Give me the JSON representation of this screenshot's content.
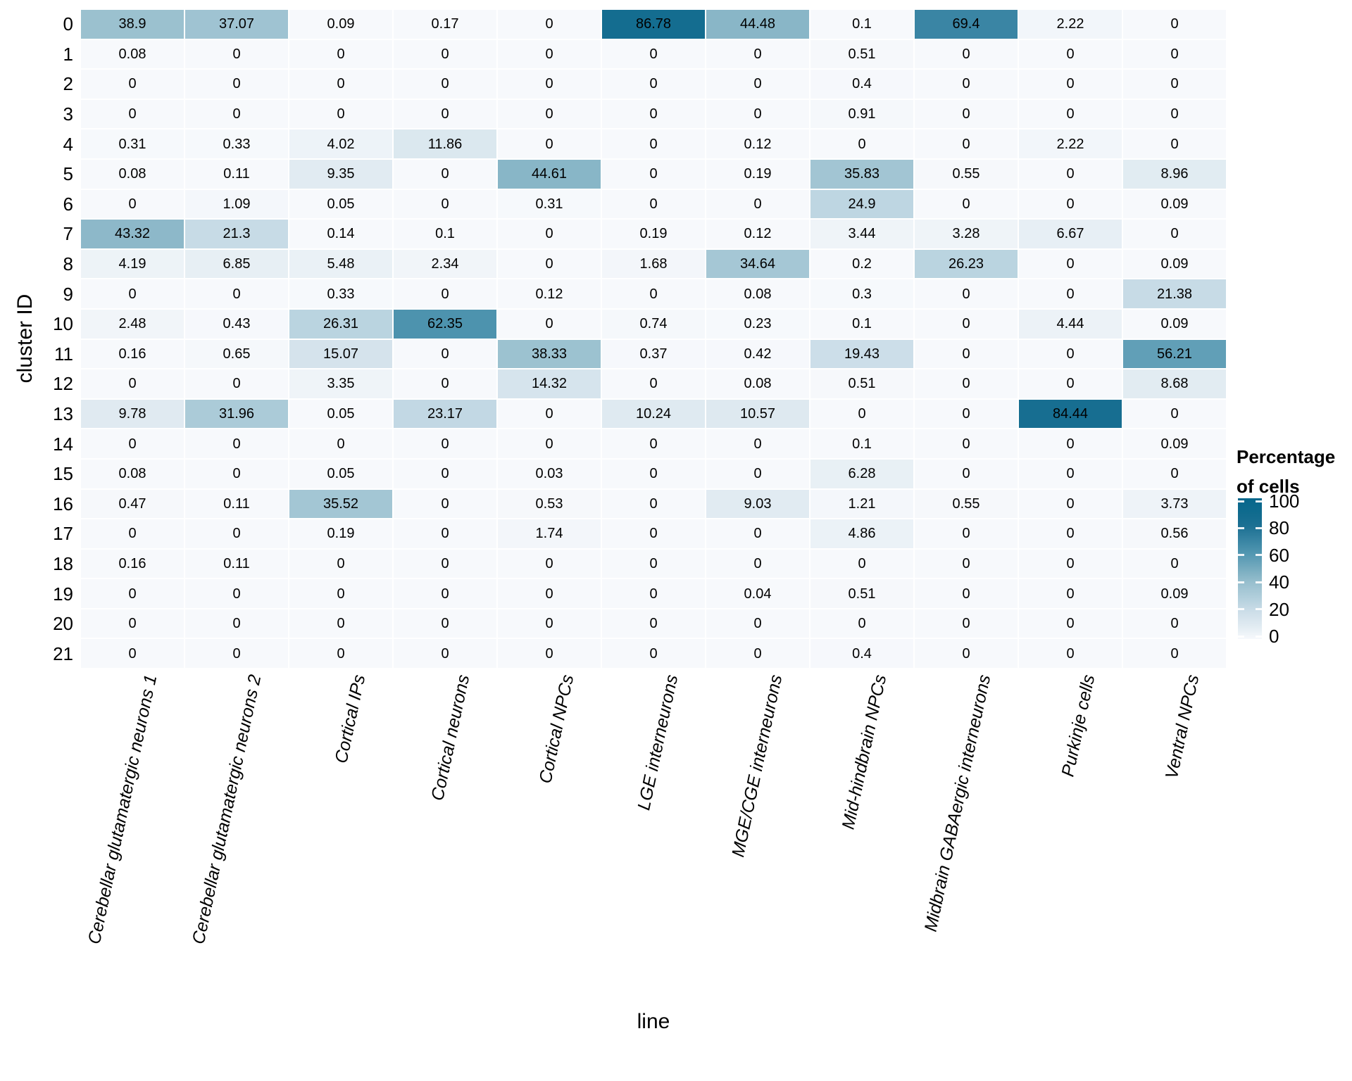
{
  "figure_background": "#ffffff",
  "axes": {
    "x_title": "line",
    "y_title": "cluster ID"
  },
  "legend": {
    "title_line1": "Percentage",
    "title_line2": "of cells",
    "tick_labels": [
      100,
      80,
      60,
      40,
      20,
      0
    ]
  },
  "chart_data": {
    "type": "heatmap",
    "title": "",
    "xlabel": "line",
    "ylabel": "cluster ID",
    "legend_title": "Percentage of cells",
    "legend_position": "right",
    "grid": false,
    "value_range": [
      0,
      100
    ],
    "columns": [
      "Cerebellar glutamatergic neurons 1",
      "Cerebellar glutamatergic neurons 2",
      "Cortical IPs",
      "Cortical neurons",
      "Cortical NPCs",
      "LGE interneurons",
      "MGE/CGE interneurons",
      "Mid-hindbrain NPCs",
      "Midbrain GABAergic interneurons",
      "Purkinje cells",
      "Ventral NPCs"
    ],
    "rows": [
      "0",
      "1",
      "2",
      "3",
      "4",
      "5",
      "6",
      "7",
      "8",
      "9",
      "10",
      "11",
      "12",
      "13",
      "14",
      "15",
      "16",
      "17",
      "18",
      "19",
      "20",
      "21"
    ],
    "values": [
      [
        38.9,
        37.07,
        0.09,
        0.17,
        0,
        86.78,
        44.48,
        0.1,
        69.4,
        2.22,
        0
      ],
      [
        0.08,
        0,
        0,
        0,
        0,
        0,
        0,
        0.51,
        0,
        0,
        0
      ],
      [
        0,
        0,
        0,
        0,
        0,
        0,
        0,
        0.4,
        0,
        0,
        0
      ],
      [
        0,
        0,
        0,
        0,
        0,
        0,
        0,
        0.91,
        0,
        0,
        0
      ],
      [
        0.31,
        0.33,
        4.02,
        11.86,
        0,
        0,
        0.12,
        0,
        0,
        2.22,
        0
      ],
      [
        0.08,
        0.11,
        9.35,
        0,
        44.61,
        0,
        0.19,
        35.83,
        0.55,
        0,
        8.96
      ],
      [
        0,
        1.09,
        0.05,
        0,
        0.31,
        0,
        0,
        24.9,
        0,
        0,
        0.09
      ],
      [
        43.32,
        21.3,
        0.14,
        0.1,
        0,
        0.19,
        0.12,
        3.44,
        3.28,
        6.67,
        0
      ],
      [
        4.19,
        6.85,
        5.48,
        2.34,
        0,
        1.68,
        34.64,
        0.2,
        26.23,
        0,
        0.09
      ],
      [
        0,
        0,
        0.33,
        0,
        0.12,
        0,
        0.08,
        0.3,
        0,
        0,
        21.38
      ],
      [
        2.48,
        0.43,
        26.31,
        62.35,
        0,
        0.74,
        0.23,
        0.1,
        0,
        4.44,
        0.09
      ],
      [
        0.16,
        0.65,
        15.07,
        0,
        38.33,
        0.37,
        0.42,
        19.43,
        0,
        0,
        56.21
      ],
      [
        0,
        0,
        3.35,
        0,
        14.32,
        0,
        0.08,
        0.51,
        0,
        0,
        8.68
      ],
      [
        9.78,
        31.96,
        0.05,
        23.17,
        0,
        10.24,
        10.57,
        0,
        0,
        84.44,
        0
      ],
      [
        0,
        0,
        0,
        0,
        0,
        0,
        0,
        0.1,
        0,
        0,
        0.09
      ],
      [
        0.08,
        0,
        0.05,
        0,
        0.03,
        0,
        0,
        6.28,
        0,
        0,
        0
      ],
      [
        0.47,
        0.11,
        35.52,
        0,
        0.53,
        0,
        9.03,
        1.21,
        0.55,
        0,
        3.73
      ],
      [
        0,
        0,
        0.19,
        0,
        1.74,
        0,
        0,
        4.86,
        0,
        0,
        0.56
      ],
      [
        0.16,
        0.11,
        0,
        0,
        0,
        0,
        0,
        0,
        0,
        0,
        0
      ],
      [
        0,
        0,
        0,
        0,
        0,
        0,
        0.04,
        0.51,
        0,
        0,
        0.09
      ],
      [
        0,
        0,
        0,
        0,
        0,
        0,
        0,
        0,
        0,
        0,
        0
      ],
      [
        0,
        0,
        0,
        0,
        0,
        0,
        0,
        0.4,
        0,
        0,
        0
      ]
    ],
    "color_scale": {
      "min": 0,
      "max": 100,
      "low": "#f7f9fc",
      "high": "#07678c",
      "stops": [
        [
          0,
          "#f7f9fc"
        ],
        [
          10,
          "#dfeaf1"
        ],
        [
          20,
          "#cbdde8"
        ],
        [
          30,
          "#b0cedb"
        ],
        [
          40,
          "#98bfce"
        ],
        [
          50,
          "#76abbf"
        ],
        [
          60,
          "#5498b2"
        ],
        [
          70,
          "#3884a3"
        ],
        [
          80,
          "#1d7093"
        ],
        [
          90,
          "#0f6b8e"
        ],
        [
          100,
          "#07678c"
        ]
      ]
    }
  }
}
